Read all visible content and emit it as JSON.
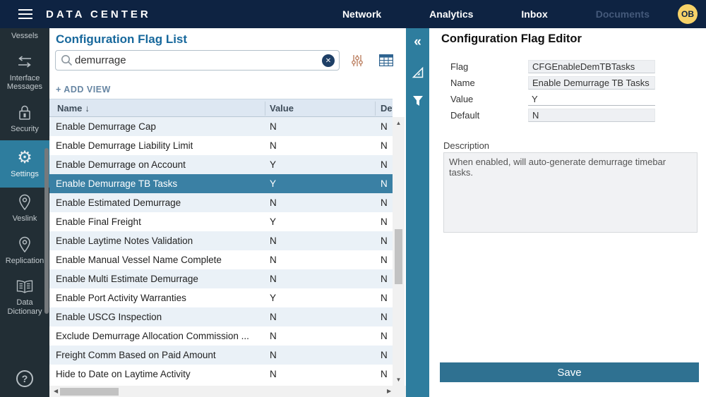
{
  "navbar": {
    "title": "DATA CENTER",
    "links": [
      {
        "label": "Network",
        "enabled": true
      },
      {
        "label": "Analytics",
        "enabled": true
      },
      {
        "label": "Inbox",
        "enabled": true
      },
      {
        "label": "Documents",
        "enabled": false
      }
    ],
    "avatar": "OB"
  },
  "sidebar": {
    "items": [
      {
        "label": "Vessels",
        "icon": null,
        "active": false
      },
      {
        "label": "Interface Messages",
        "icon": "interface-messages-icon",
        "active": false
      },
      {
        "label": "Security",
        "icon": "lock-icon",
        "active": false
      },
      {
        "label": "Settings",
        "icon": "gear-icon",
        "active": true
      },
      {
        "label": "Veslink",
        "icon": "pin-icon",
        "active": false
      },
      {
        "label": "Replication",
        "icon": "pin-icon",
        "active": false
      },
      {
        "label": "Data Dictionary",
        "icon": "book-icon",
        "active": false
      }
    ],
    "help_icon": "help-icon",
    "help_glyph": "?"
  },
  "list_panel": {
    "title": "Configuration Flag List",
    "search_value": "demurrage",
    "search_icon": "search-icon",
    "clear_icon": "clear-icon",
    "clear_glyph": "✕",
    "filter_sliders_icon": "sliders-icon",
    "grid_view_icon": "grid-icon",
    "add_view_label": "+ ADD VIEW",
    "table": {
      "columns": [
        {
          "label": "Name",
          "sorted": "desc"
        },
        {
          "label": "Value",
          "sorted": null
        },
        {
          "label": "Default",
          "sorted": null
        }
      ],
      "sort_arrow_glyph": "↓",
      "rows": [
        {
          "name": "Enable Demurrage Cap",
          "value": "N",
          "default": "N",
          "selected": false
        },
        {
          "name": "Enable Demurrage Liability Limit",
          "value": "N",
          "default": "N",
          "selected": false
        },
        {
          "name": "Enable Demurrage on Account",
          "value": "Y",
          "default": "N",
          "selected": false
        },
        {
          "name": "Enable Demurrage TB Tasks",
          "value": "Y",
          "default": "N",
          "selected": true
        },
        {
          "name": "Enable Estimated Demurrage",
          "value": "N",
          "default": "N",
          "selected": false
        },
        {
          "name": "Enable Final Freight",
          "value": "Y",
          "default": "N",
          "selected": false
        },
        {
          "name": "Enable Laytime Notes Validation",
          "value": "N",
          "default": "N",
          "selected": false
        },
        {
          "name": "Enable Manual Vessel Name Complete",
          "value": "N",
          "default": "N",
          "selected": false
        },
        {
          "name": "Enable Multi Estimate Demurrage",
          "value": "N",
          "default": "N",
          "selected": false
        },
        {
          "name": "Enable Port Activity Warranties",
          "value": "Y",
          "default": "N",
          "selected": false
        },
        {
          "name": "Enable USCG Inspection",
          "value": "N",
          "default": "N",
          "selected": false
        },
        {
          "name": "Exclude Demurrage Allocation Commission ...",
          "value": "N",
          "default": "N",
          "selected": false
        },
        {
          "name": "Freight Comm Based on Paid Amount",
          "value": "N",
          "default": "N",
          "selected": false
        },
        {
          "name": "Hide to Date on Laytime Activity",
          "value": "N",
          "default": "N",
          "selected": false
        }
      ]
    },
    "scrollbar_glyphs": {
      "up": "▲",
      "down": "▼",
      "left": "◀",
      "right": "▶"
    }
  },
  "tool_strip": {
    "collapse_icon": "collapse-left-icon",
    "collapse_glyph": "«",
    "design_icon": "set-square-icon",
    "filter_icon": "funnel-icon"
  },
  "editor_panel": {
    "title": "Configuration Flag Editor",
    "fields": [
      {
        "label": "Flag",
        "value": "CFGEnableDemTBTasks",
        "editable": false
      },
      {
        "label": "Name",
        "value": "Enable Demurrage TB Tasks",
        "editable": false
      },
      {
        "label": "Value",
        "value": "Y",
        "editable": true
      },
      {
        "label": "Default",
        "value": "N",
        "editable": false
      }
    ],
    "description_label": "Description",
    "description_value": "When enabled, will auto-generate demurrage timebar tasks.",
    "save_label": "Save"
  },
  "colors": {
    "navbar_bg": "#0e2342",
    "sidebar_bg": "#222e35",
    "accent_teal": "#2e7d9e",
    "selected_row": "#3a80a4",
    "table_header_bg": "#dde7f2",
    "alt_row_bg": "#eaf1f7",
    "list_title": "#17689c",
    "save_button": "#2f7191",
    "avatar_bg": "#f6d268",
    "sliders_icon": "#bd8264",
    "grid_icon": "#2e6390"
  }
}
